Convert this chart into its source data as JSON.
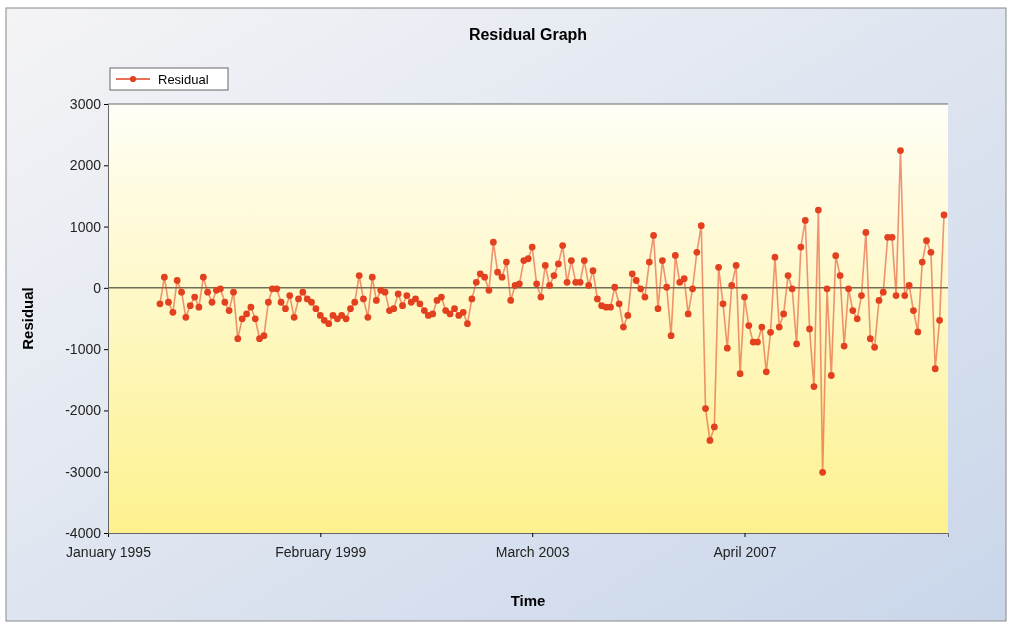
{
  "chart_data": {
    "type": "line",
    "title": "Residual Graph",
    "xlabel": "Time",
    "ylabel": "Residual",
    "x": [
      "1996-01",
      "1996-02",
      "1996-03",
      "1996-04",
      "1996-05",
      "1996-06",
      "1996-07",
      "1996-08",
      "1996-09",
      "1996-10",
      "1996-11",
      "1996-12",
      "1997-01",
      "1997-02",
      "1997-03",
      "1997-04",
      "1997-05",
      "1997-06",
      "1997-07",
      "1997-08",
      "1997-09",
      "1997-10",
      "1997-11",
      "1997-12",
      "1998-01",
      "1998-02",
      "1998-03",
      "1998-04",
      "1998-05",
      "1998-06",
      "1998-07",
      "1998-08",
      "1998-09",
      "1998-10",
      "1998-11",
      "1998-12",
      "1999-01",
      "1999-02",
      "1999-03",
      "1999-04",
      "1999-05",
      "1999-06",
      "1999-07",
      "1999-08",
      "1999-09",
      "1999-10",
      "1999-11",
      "1999-12",
      "2000-01",
      "2000-02",
      "2000-03",
      "2000-04",
      "2000-05",
      "2000-06",
      "2000-07",
      "2000-08",
      "2000-09",
      "2000-10",
      "2000-11",
      "2000-12",
      "2001-01",
      "2001-02",
      "2001-03",
      "2001-04",
      "2001-05",
      "2001-06",
      "2001-07",
      "2001-08",
      "2001-09",
      "2001-10",
      "2001-11",
      "2001-12",
      "2002-01",
      "2002-02",
      "2002-03",
      "2002-04",
      "2002-05",
      "2002-06",
      "2002-07",
      "2002-08",
      "2002-09",
      "2002-10",
      "2002-11",
      "2002-12",
      "2003-01",
      "2003-02",
      "2003-03",
      "2003-04",
      "2003-05",
      "2003-06",
      "2003-07",
      "2003-08",
      "2003-09",
      "2003-10",
      "2003-11",
      "2003-12",
      "2004-01",
      "2004-02",
      "2004-03",
      "2004-04",
      "2004-05",
      "2004-06",
      "2004-07",
      "2004-08",
      "2004-09",
      "2004-10",
      "2004-11",
      "2004-12",
      "2005-01",
      "2005-02",
      "2005-03",
      "2005-04",
      "2005-05",
      "2005-06",
      "2005-07",
      "2005-08",
      "2005-09",
      "2005-10",
      "2005-11",
      "2005-12",
      "2006-01",
      "2006-02",
      "2006-03",
      "2006-04",
      "2006-05",
      "2006-06",
      "2006-07",
      "2006-08",
      "2006-09",
      "2006-10",
      "2006-11",
      "2006-12",
      "2007-01",
      "2007-02",
      "2007-03",
      "2007-04",
      "2007-05",
      "2007-06",
      "2007-07",
      "2007-08",
      "2007-09",
      "2007-10",
      "2007-11",
      "2007-12",
      "2008-01",
      "2008-02",
      "2008-03",
      "2008-04",
      "2008-05",
      "2008-06",
      "2008-07",
      "2008-08",
      "2008-09",
      "2008-10",
      "2008-11",
      "2008-12",
      "2009-01",
      "2009-02",
      "2009-03",
      "2009-04",
      "2009-05",
      "2009-06",
      "2009-07",
      "2009-08",
      "2009-09",
      "2009-10",
      "2009-11",
      "2009-12",
      "2010-01",
      "2010-02",
      "2010-03",
      "2010-04",
      "2010-05",
      "2010-06",
      "2010-07",
      "2010-08",
      "2010-09",
      "2010-10",
      "2010-11",
      "2010-12",
      "2011-01",
      "2011-02"
    ],
    "series": [
      {
        "name": "Residual",
        "color": "#e2401e",
        "values": [
          -260,
          175,
          -235,
          -400,
          120,
          -70,
          -480,
          -290,
          -150,
          -315,
          175,
          -70,
          -235,
          -40,
          -15,
          -235,
          -370,
          -70,
          -830,
          -505,
          -425,
          -315,
          -505,
          -830,
          -780,
          -235,
          -15,
          -15,
          -235,
          -340,
          -125,
          -480,
          -180,
          -70,
          -180,
          -235,
          -340,
          -450,
          -530,
          -585,
          -450,
          -505,
          -450,
          -505,
          -340,
          -235,
          200,
          -180,
          -480,
          175,
          -205,
          -40,
          -70,
          -370,
          -340,
          -100,
          -290,
          -125,
          -235,
          -180,
          -260,
          -370,
          -450,
          -425,
          -205,
          -150,
          -370,
          -425,
          -340,
          -450,
          -400,
          -585,
          -180,
          90,
          230,
          175,
          -40,
          745,
          255,
          175,
          420,
          -205,
          40,
          65,
          445,
          475,
          665,
          65,
          -150,
          365,
          40,
          200,
          390,
          690,
          90,
          445,
          90,
          90,
          445,
          40,
          280,
          -180,
          -290,
          -315,
          -315,
          10,
          -260,
          -640,
          -450,
          230,
          120,
          -15,
          -150,
          420,
          855,
          -340,
          445,
          10,
          -780,
          530,
          90,
          150,
          -425,
          -15,
          580,
          1015,
          -1970,
          -2490,
          -2270,
          335,
          -260,
          -985,
          40,
          365,
          -1400,
          -150,
          -615,
          -885,
          -885,
          -640,
          -1370,
          -725,
          500,
          -640,
          -425,
          200,
          -15,
          -915,
          665,
          1100,
          -670,
          -1610,
          1270,
          -3010,
          -15,
          -1430,
          525,
          200,
          -950,
          -15,
          -370,
          -505,
          -125,
          905,
          -830,
          -970,
          -205,
          -70,
          825,
          825,
          -125,
          2240,
          -125,
          40,
          -370,
          -720,
          420,
          770,
          580,
          -1320,
          -530,
          1190
        ]
      }
    ],
    "xlim": [
      "1995-01",
      "2011-03"
    ],
    "xticks": [
      {
        "value": "1995-01",
        "label": "January 1995"
      },
      {
        "value": "1999-02",
        "label": "February 1999"
      },
      {
        "value": "2003-03",
        "label": "March 2003"
      },
      {
        "value": "2007-04",
        "label": "April 2007"
      }
    ],
    "ylim": [
      -4000,
      3000
    ],
    "yticks": [
      -4000,
      -3000,
      -2000,
      -1000,
      0,
      1000,
      2000,
      3000
    ],
    "ref_lines": [
      {
        "axis": "y",
        "value": 0,
        "color": "#6e6e58"
      }
    ],
    "marker": "circle",
    "line_style": "solid",
    "legend": "top left",
    "grid": false
  }
}
